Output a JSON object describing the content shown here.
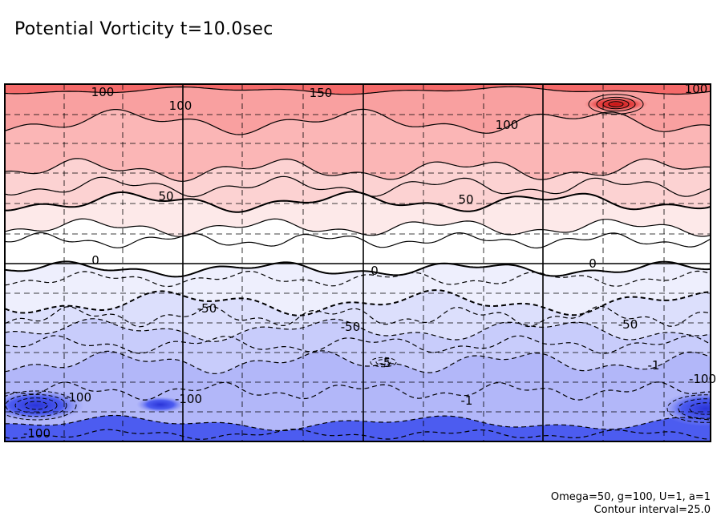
{
  "title": "Potential Vorticity t=10.0sec",
  "footer": {
    "params": "Omega=50, g=100, U=1, a=1",
    "contour_interval": "Contour interval=25.0"
  },
  "chart_data": {
    "type": "contour",
    "title": "Potential Vorticity t=10.0sec",
    "field": "Potential Vorticity",
    "time": "10.0sec",
    "contour_interval": 25.0,
    "negative_contours": "dashed",
    "grid": true,
    "colors": {
      "positive_max": "#f46a6a",
      "zero": "#ffffff",
      "negative_max": "#3f4fe8"
    },
    "bands": [
      {
        "lower": 150,
        "upper": 175,
        "color": "#f46a6a"
      },
      {
        "lower": 100,
        "upper": 150,
        "color": "#f9a0a0"
      },
      {
        "lower": 75,
        "upper": 100,
        "color": "#fbb6b6"
      },
      {
        "lower": 50,
        "upper": 75,
        "color": "#fcd2d2"
      },
      {
        "lower": 25,
        "upper": 50,
        "color": "#fde9e9"
      },
      {
        "lower": 0,
        "upper": 25,
        "color": "#ffffff"
      },
      {
        "lower": -25,
        "upper": 0,
        "color": "#eeeffd"
      },
      {
        "lower": -50,
        "upper": -25,
        "color": "#dcdffc"
      },
      {
        "lower": -75,
        "upper": -50,
        "color": "#c8ccfb"
      },
      {
        "lower": -100,
        "upper": -75,
        "color": "#b2b7f9"
      },
      {
        "lower": -175,
        "upper": -100,
        "color": "#4c5cf0"
      }
    ],
    "contour_labels": [
      {
        "text": "100"
      },
      {
        "text": "100"
      },
      {
        "text": "150"
      },
      {
        "text": "100"
      },
      {
        "text": "100"
      },
      {
        "text": "50"
      },
      {
        "text": "50"
      },
      {
        "text": "0"
      },
      {
        "text": "0"
      },
      {
        "text": "0"
      },
      {
        "text": "-50"
      },
      {
        "text": "-50"
      },
      {
        "text": "-50"
      },
      {
        "text": "-100"
      },
      {
        "text": "-100"
      },
      {
        "text": "-100"
      },
      {
        "text": "-5"
      },
      {
        "text": "-1"
      },
      {
        "text": "-1"
      },
      {
        "text": "-100"
      }
    ]
  }
}
